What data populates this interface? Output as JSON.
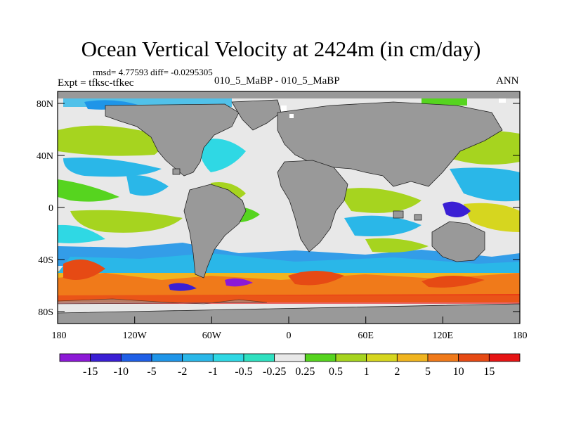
{
  "title": "Ocean Vertical Velocity at 2424m (in cm/day)",
  "stats": "rmsd= 4.77593 diff= -0.0295305",
  "expt": "Expt = tfksc-tfkec",
  "case": "010_5_MaBP - 010_5_MaBP",
  "season": "ANN",
  "lat_ticks": [
    "80N",
    "40N",
    "0",
    "40S",
    "80S"
  ],
  "lon_ticks": [
    "180",
    "120W",
    "60W",
    "0",
    "60E",
    "120E",
    "180"
  ],
  "colorbar": {
    "labels": [
      "-15",
      "-10",
      "-5",
      "-2",
      "-1",
      "-0.5",
      "-0.25",
      "0.25",
      "0.5",
      "1",
      "2",
      "5",
      "10",
      "15"
    ],
    "colors": [
      "#8c19d6",
      "#3a1fd4",
      "#1f5fe6",
      "#1f95e8",
      "#2ab7e8",
      "#2fd8e4",
      "#2fe0c0",
      "#e8e8e8",
      "#56d41f",
      "#a6d41f",
      "#d6d61f",
      "#f0b41f",
      "#f07a1a",
      "#e64a14",
      "#e61414"
    ]
  },
  "colors": {
    "land": "#999999",
    "ocean_neutral": "#e8e8e8"
  }
}
